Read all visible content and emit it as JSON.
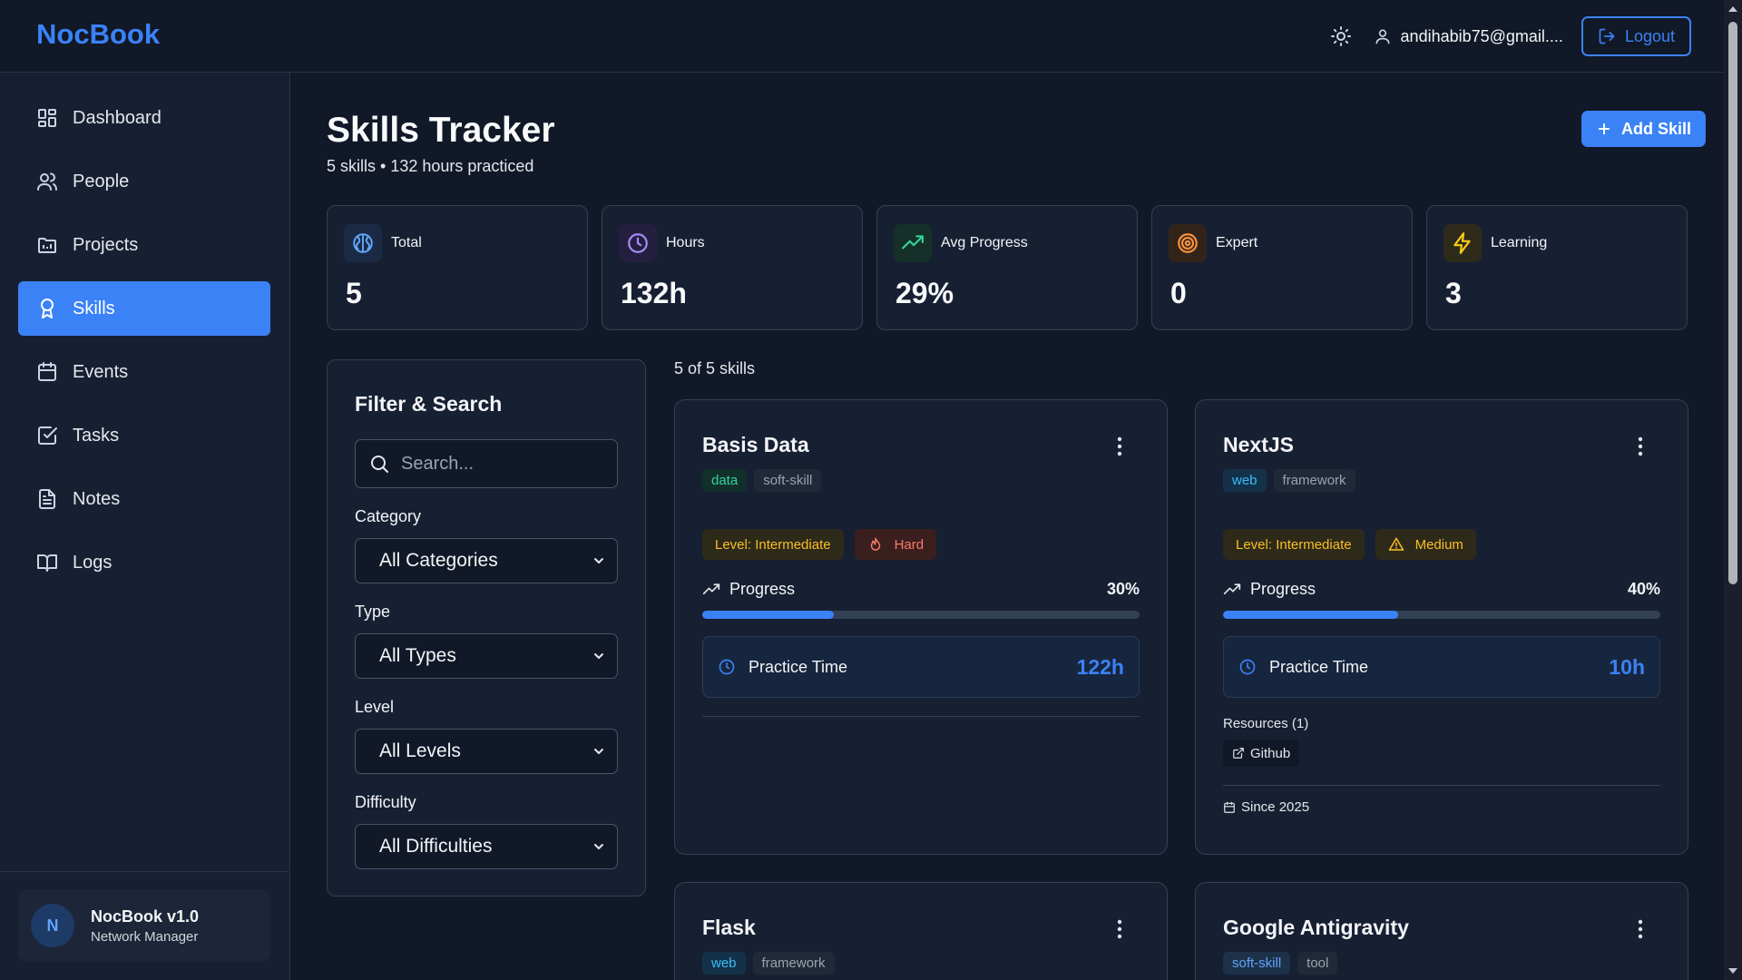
{
  "app": {
    "name": "NocBook"
  },
  "header": {
    "user_email": "andihabib75@gmail....",
    "logout_label": "Logout"
  },
  "sidebar": {
    "items": [
      {
        "label": "Dashboard",
        "icon": "dashboard-icon"
      },
      {
        "label": "People",
        "icon": "people-icon"
      },
      {
        "label": "Projects",
        "icon": "projects-icon"
      },
      {
        "label": "Skills",
        "icon": "skills-icon",
        "active": true
      },
      {
        "label": "Events",
        "icon": "calendar-icon"
      },
      {
        "label": "Tasks",
        "icon": "tasks-icon"
      },
      {
        "label": "Notes",
        "icon": "notes-icon"
      },
      {
        "label": "Logs",
        "icon": "book-icon"
      }
    ],
    "version": {
      "avatar": "N",
      "title": "NocBook v1.0",
      "subtitle": "Network Manager"
    }
  },
  "page": {
    "title": "Skills Tracker",
    "subtitle": "5 skills • 132 hours practiced",
    "add_label": "Add Skill"
  },
  "stats": [
    {
      "label": "Total",
      "value": "5",
      "icon": "brain-icon",
      "color": "#60a5fa"
    },
    {
      "label": "Hours",
      "value": "132h",
      "icon": "clock-icon",
      "color": "#a78bfa"
    },
    {
      "label": "Avg Progress",
      "value": "29%",
      "icon": "trending-up-icon",
      "color": "#34d399"
    },
    {
      "label": "Expert",
      "value": "0",
      "icon": "target-icon",
      "color": "#fb923c"
    },
    {
      "label": "Learning",
      "value": "3",
      "icon": "lightning-icon",
      "color": "#facc15"
    }
  ],
  "filter": {
    "title": "Filter & Search",
    "search_placeholder": "Search...",
    "category_label": "Category",
    "category_value": "All Categories",
    "type_label": "Type",
    "type_value": "All Types",
    "level_label": "Level",
    "level_value": "All Levels",
    "difficulty_label": "Difficulty",
    "difficulty_value": "All Difficulties"
  },
  "results_count": "5 of 5 skills",
  "skills": [
    {
      "title": "Basis Data",
      "category": "data",
      "type": "soft-skill",
      "level": "Level: Intermediate",
      "difficulty": "Hard",
      "progress_label": "Progress",
      "progress": "30%",
      "progress_value": 0.3,
      "practice_label": "Practice Time",
      "practice": "122h"
    },
    {
      "title": "NextJS",
      "category": "web",
      "type": "framework",
      "level": "Level: Intermediate",
      "difficulty": "Medium",
      "progress_label": "Progress",
      "progress": "40%",
      "progress_value": 0.4,
      "practice_label": "Practice Time",
      "practice": "10h",
      "resources_label": "Resources (1)",
      "resource": "Github",
      "since": "Since 2025"
    },
    {
      "title": "Flask",
      "category": "web",
      "type": "framework"
    },
    {
      "title": "Google Antigravity",
      "category": "soft-skill",
      "type": "tool"
    }
  ]
}
